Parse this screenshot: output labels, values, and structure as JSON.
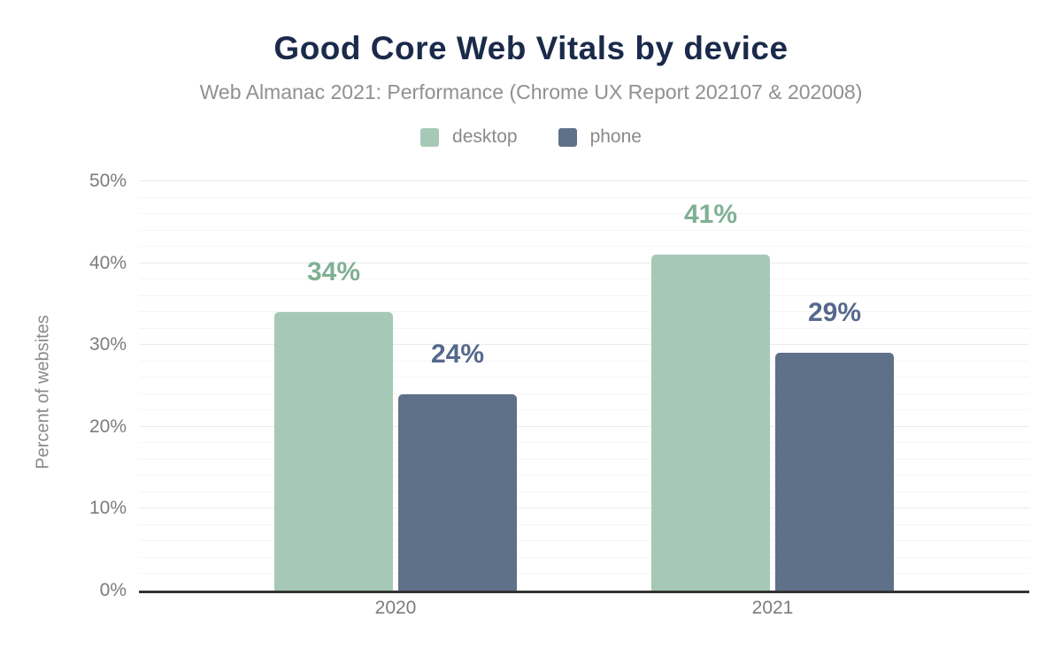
{
  "header": {
    "title": "Good Core Web Vitals by device",
    "subtitle": "Web Almanac 2021: Performance (Chrome UX Report 202107 & 202008)"
  },
  "legend": [
    {
      "label": "desktop",
      "color": "#a5c9b6"
    },
    {
      "label": "phone",
      "color": "#5f7089"
    }
  ],
  "axes": {
    "y_title": "Percent of websites",
    "y_ticks": [
      "0%",
      "10%",
      "20%",
      "30%",
      "40%",
      "50%"
    ],
    "x_ticks": [
      "2020",
      "2021"
    ]
  },
  "chart_data": {
    "type": "bar",
    "title": "Good Core Web Vitals by device",
    "subtitle": "Web Almanac 2021: Performance (Chrome UX Report 202107 & 202008)",
    "categories": [
      "2020",
      "2021"
    ],
    "series": [
      {
        "name": "desktop",
        "values": [
          34,
          41
        ],
        "labels": [
          "34%",
          "41%"
        ],
        "bar_color": "#a5c9b6",
        "label_color": "#80b094"
      },
      {
        "name": "phone",
        "values": [
          24,
          29
        ],
        "labels": [
          "24%",
          "29%"
        ],
        "bar_color": "#5f7089",
        "label_color": "#55698c"
      }
    ],
    "xlabel": "",
    "ylabel": "Percent of websites",
    "ylim": [
      0,
      50
    ],
    "y_major_step": 10,
    "y_minor_step": 2,
    "grid": true,
    "legend_position": "top",
    "colors": {
      "title": "#1b2a4a",
      "subtitle": "#909090",
      "tick_label": "#7c7c7c",
      "axis_line": "#333333",
      "gridline_minor": "#f5f5f5",
      "gridline_major": "#ebebeb"
    }
  }
}
